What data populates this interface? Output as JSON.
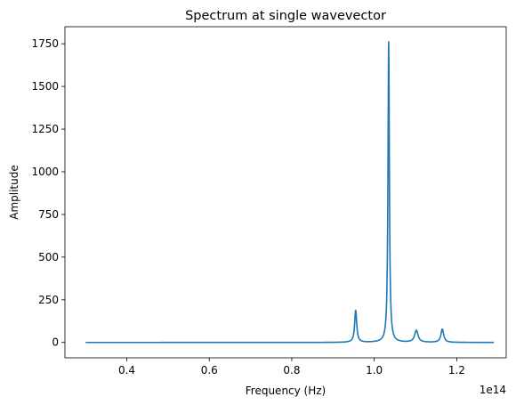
{
  "chart_data": {
    "type": "line",
    "title": "Spectrum at single wavevector",
    "xlabel": "Frequency (Hz)",
    "ylabel": "Amplitude",
    "x_offset_label": "1e14",
    "xlim": [
      0.25,
      1.32
    ],
    "ylim": [
      -90,
      1850
    ],
    "x_ticks": [
      0.4,
      0.6,
      0.8,
      1.0,
      1.2
    ],
    "x_tick_labels": [
      "0.4",
      "0.6",
      "0.8",
      "1.0",
      "1.2"
    ],
    "y_ticks": [
      0,
      250,
      500,
      750,
      1000,
      1250,
      1500,
      1750
    ],
    "y_tick_labels": [
      "0",
      "250",
      "500",
      "750",
      "1000",
      "1250",
      "1500",
      "1750"
    ],
    "x_range": [
      0.3,
      1.29
    ],
    "grid": false,
    "series": [
      {
        "color": "#1f77b4",
        "peaks": [
          {
            "x": 0.955,
            "y": 187,
            "width": 0.003
          },
          {
            "x": 1.035,
            "y": 1762,
            "width": 0.002
          },
          {
            "x": 1.102,
            "y": 70,
            "width": 0.005
          },
          {
            "x": 1.165,
            "y": 78,
            "width": 0.004
          }
        ]
      }
    ]
  }
}
